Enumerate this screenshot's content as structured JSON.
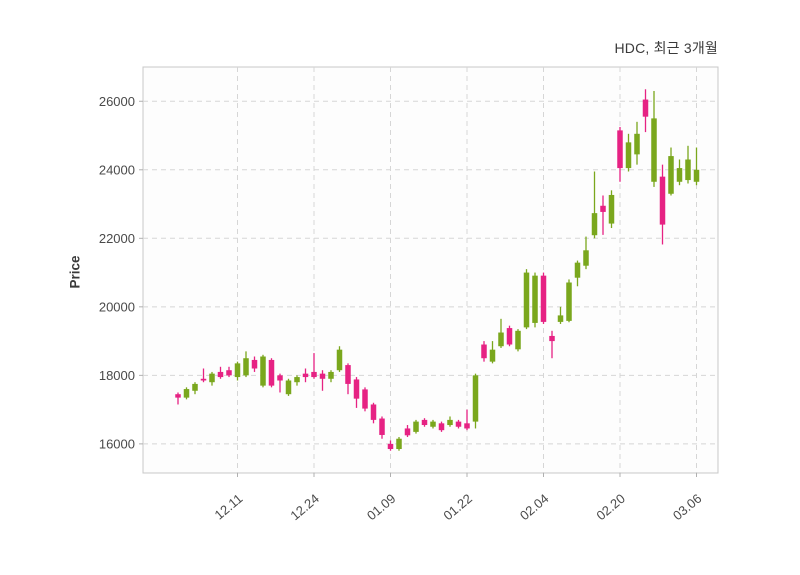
{
  "chart_data": {
    "type": "candlestick",
    "title": "HDC, 최근 3개월",
    "ylabel": "Price",
    "xlabel": "",
    "legend": "none",
    "grid": "dashed",
    "ylim": [
      15150,
      27000
    ],
    "y_ticks": [
      "16000",
      "18000",
      "20000",
      "22000",
      "24000",
      "26000"
    ],
    "y_tick_values": [
      16000,
      18000,
      20000,
      22000,
      24000,
      26000
    ],
    "x_tick_labels": [
      "12.11",
      "12.24",
      "01.09",
      "01.22",
      "02.04",
      "02.20",
      "03.06"
    ],
    "x_tick_indices": [
      7,
      16,
      25,
      34,
      43,
      52,
      61
    ],
    "colors": {
      "up": "#7aa71d",
      "down": "#e62283",
      "grid": "#d6d6d6",
      "panel_border": "#c8c8c8",
      "panel_bg": "#fdfdfd",
      "tick_mark": "#b0b0b0",
      "text": "#4a4a4a",
      "title_text": "#3a3a3a",
      "background": "#ffffff"
    },
    "ohlc_format": [
      "open",
      "high",
      "low",
      "close"
    ],
    "candles_ohlc": [
      [
        17450,
        17500,
        17150,
        17350
      ],
      [
        17350,
        17650,
        17300,
        17600
      ],
      [
        17550,
        17800,
        17450,
        17750
      ],
      [
        17900,
        18200,
        17800,
        17850
      ],
      [
        17800,
        18100,
        17700,
        18050
      ],
      [
        18100,
        18250,
        17900,
        17950
      ],
      [
        18150,
        18250,
        17950,
        18000
      ],
      [
        17950,
        18400,
        17850,
        18350
      ],
      [
        18000,
        18700,
        17950,
        18500
      ],
      [
        18450,
        18550,
        18100,
        18200
      ],
      [
        17700,
        18600,
        17650,
        18550
      ],
      [
        18450,
        18500,
        17650,
        17700
      ],
      [
        18000,
        18050,
        17500,
        17850
      ],
      [
        17450,
        17900,
        17400,
        17850
      ],
      [
        17800,
        18000,
        17700,
        17950
      ],
      [
        18050,
        18200,
        17800,
        17950
      ],
      [
        18100,
        18650,
        17900,
        17950
      ],
      [
        18050,
        18150,
        17550,
        17900
      ],
      [
        17900,
        18150,
        17800,
        18100
      ],
      [
        18150,
        18850,
        18100,
        18750
      ],
      [
        18300,
        18350,
        17450,
        17750
      ],
      [
        17880,
        17950,
        17050,
        17320
      ],
      [
        17590,
        17650,
        16950,
        17030
      ],
      [
        17150,
        17200,
        16600,
        16700
      ],
      [
        16740,
        16800,
        16150,
        16260
      ],
      [
        16000,
        16100,
        15800,
        15850
      ],
      [
        15850,
        16200,
        15800,
        16150
      ],
      [
        16450,
        16550,
        16200,
        16250
      ],
      [
        16350,
        16700,
        16300,
        16650
      ],
      [
        16700,
        16750,
        16500,
        16550
      ],
      [
        16500,
        16700,
        16450,
        16650
      ],
      [
        16600,
        16650,
        16350,
        16400
      ],
      [
        16550,
        16800,
        16500,
        16700
      ],
      [
        16650,
        16700,
        16450,
        16500
      ],
      [
        16600,
        17000,
        16400,
        16450
      ],
      [
        16650,
        18050,
        16450,
        18000
      ],
      [
        18900,
        19000,
        18400,
        18500
      ],
      [
        18400,
        19000,
        18350,
        18750
      ],
      [
        18850,
        19650,
        18800,
        19250
      ],
      [
        19380,
        19450,
        18850,
        18900
      ],
      [
        18760,
        19350,
        18700,
        19300
      ],
      [
        19400,
        21100,
        19350,
        21000
      ],
      [
        19530,
        21000,
        19400,
        20910
      ],
      [
        20910,
        21000,
        19500,
        19560
      ],
      [
        19150,
        19300,
        18500,
        19000
      ],
      [
        19560,
        20000,
        19500,
        19750
      ],
      [
        19590,
        20800,
        19550,
        20710
      ],
      [
        20850,
        21350,
        20600,
        21290
      ],
      [
        21200,
        22050,
        21100,
        21650
      ],
      [
        22090,
        23950,
        22000,
        22735
      ],
      [
        22950,
        23250,
        22100,
        22770
      ],
      [
        22430,
        23400,
        22300,
        23265
      ],
      [
        25150,
        25250,
        23650,
        24050
      ],
      [
        24050,
        25050,
        23950,
        24800
      ],
      [
        24450,
        25400,
        24150,
        25050
      ],
      [
        26050,
        26350,
        25100,
        25550
      ],
      [
        23650,
        26300,
        23500,
        25500
      ],
      [
        23800,
        24150,
        21820,
        22400
      ],
      [
        23300,
        24650,
        23250,
        24400
      ],
      [
        23650,
        24300,
        23550,
        24050
      ],
      [
        23700,
        24700,
        23600,
        24300
      ],
      [
        23650,
        24650,
        23550,
        24000
      ]
    ]
  }
}
